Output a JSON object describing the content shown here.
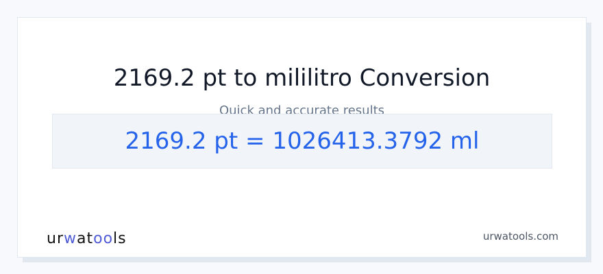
{
  "header": {
    "title": "2169.2 pt to mililitro Conversion",
    "subtitle": "Quick and accurate results"
  },
  "result": {
    "text": "2169.2 pt = 1026413.3792 ml"
  },
  "footer": {
    "logo": "urwatools",
    "logo_parts": [
      "ur",
      "w",
      "at",
      "oo",
      "ls"
    ],
    "site": "urwatools.com"
  },
  "colors": {
    "accent": "#2563eb",
    "logo_accent": "#4f5bd5"
  }
}
